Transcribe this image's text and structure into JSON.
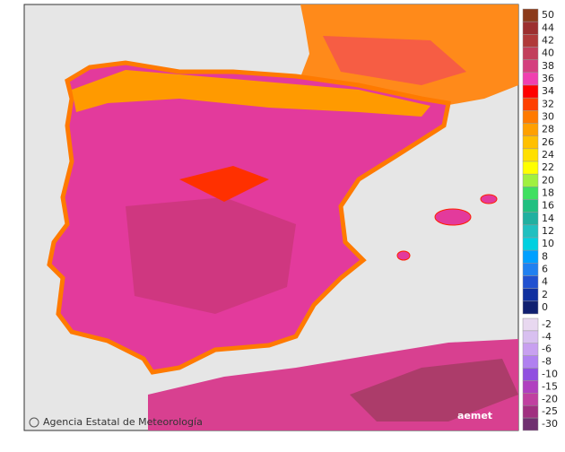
{
  "map": {
    "credit": "Agencia Estatal de Meteorología",
    "logo": "aemet",
    "legend": {
      "upper": [
        {
          "label": "50",
          "color": "#8b3a1a"
        },
        {
          "label": "44",
          "color": "#9c2f2f"
        },
        {
          "label": "42",
          "color": "#b03a3a"
        },
        {
          "label": "40",
          "color": "#c23f5c"
        },
        {
          "label": "38",
          "color": "#d4407e"
        },
        {
          "label": "36",
          "color": "#f040b0"
        },
        {
          "label": "34",
          "color": "#ff0000"
        },
        {
          "label": "32",
          "color": "#ff4000"
        },
        {
          "label": "30",
          "color": "#ff7a00"
        },
        {
          "label": "28",
          "color": "#ffa000"
        },
        {
          "label": "26",
          "color": "#ffc000"
        },
        {
          "label": "24",
          "color": "#ffe000"
        },
        {
          "label": "22",
          "color": "#ffff00"
        },
        {
          "label": "20",
          "color": "#a0f040"
        },
        {
          "label": "18",
          "color": "#40e060"
        },
        {
          "label": "16",
          "color": "#20c080"
        },
        {
          "label": "14",
          "color": "#20b0a0"
        },
        {
          "label": "12",
          "color": "#20c0c0"
        },
        {
          "label": "10",
          "color": "#00d0e0"
        },
        {
          "label": "8",
          "color": "#00a0ff"
        },
        {
          "label": "6",
          "color": "#2080f0"
        },
        {
          "label": "4",
          "color": "#2050d0"
        },
        {
          "label": "2",
          "color": "#1030a0"
        },
        {
          "label": "0",
          "color": "#102070"
        }
      ],
      "lower": [
        {
          "label": "-2",
          "color": "#e8d8f0"
        },
        {
          "label": "-4",
          "color": "#d8c0f0"
        },
        {
          "label": "-6",
          "color": "#c8a0f0"
        },
        {
          "label": "-8",
          "color": "#b080f0"
        },
        {
          "label": "-10",
          "color": "#9050e0"
        },
        {
          "label": "-15",
          "color": "#b040c0"
        },
        {
          "label": "-20",
          "color": "#c040a0"
        },
        {
          "label": "-25",
          "color": "#a03080"
        },
        {
          "label": "-30",
          "color": "#703070"
        }
      ]
    }
  }
}
